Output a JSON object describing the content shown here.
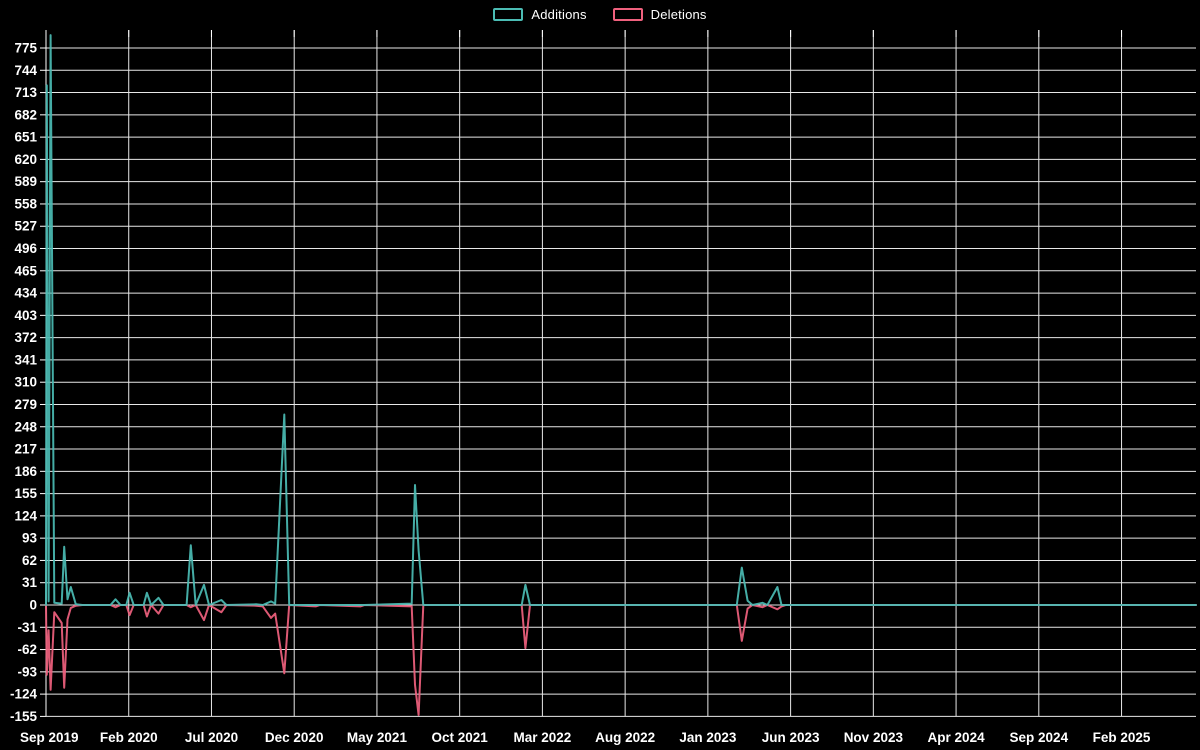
{
  "colors": {
    "background": "#000000",
    "grid": "#e8e8e8",
    "axis": "#ffffff",
    "text": "#ffffff",
    "additions": "#4bbcb4",
    "deletions": "#f0617e"
  },
  "chart_data": {
    "type": "line",
    "title": "",
    "xlabel": "",
    "ylabel": "",
    "legend_position": "top-center",
    "grid": true,
    "y_axis": {
      "min": -155,
      "max": 775,
      "tick_step": 31,
      "ticks": [
        775,
        744,
        713,
        682,
        651,
        620,
        589,
        558,
        527,
        496,
        465,
        434,
        403,
        372,
        341,
        310,
        279,
        248,
        217,
        186,
        155,
        124,
        93,
        62,
        31,
        0,
        -31,
        -62,
        -93,
        -124,
        -155
      ]
    },
    "x_axis": {
      "unit": "months since Sep 2019",
      "range_months": 69.5,
      "tick_months": [
        0,
        5,
        10,
        15,
        20,
        25,
        30,
        35,
        40,
        45,
        50,
        55,
        60,
        65
      ],
      "tick_labels": [
        "Sep 2019",
        "Feb 2020",
        "Jul 2020",
        "Dec 2020",
        "May 2021",
        "Oct 2021",
        "Mar 2022",
        "Aug 2022",
        "Jan 2023",
        "Jun 2023",
        "Nov 2023",
        "Apr 2024",
        "Sep 2024",
        "Feb 2025"
      ]
    },
    "x_months": [
      0.0,
      0.05,
      0.16,
      0.28,
      0.5,
      0.95,
      1.1,
      1.3,
      1.5,
      1.8,
      2.2,
      3.9,
      4.2,
      4.5,
      4.85,
      5.05,
      5.3,
      5.9,
      6.1,
      6.35,
      6.8,
      7.1,
      8.5,
      8.75,
      9.05,
      9.55,
      9.85,
      10.6,
      10.9,
      12.7,
      13.1,
      13.6,
      13.85,
      14.4,
      14.7,
      16.3,
      16.55,
      19.0,
      19.25,
      22.1,
      22.3,
      22.52,
      22.8,
      28.75,
      28.97,
      29.25,
      41.75,
      42.05,
      42.4,
      42.7,
      43.3,
      43.6,
      44.2,
      44.45,
      44.7,
      69.5
    ],
    "series": [
      {
        "name": "Additions",
        "color": "#4bbcb4",
        "values": [
          0,
          723,
          5,
          793,
          3,
          2,
          81,
          8,
          25,
          1,
          0,
          0,
          8,
          0,
          0,
          17,
          0,
          0,
          17,
          0,
          10,
          0,
          0,
          83,
          0,
          28,
          0,
          7,
          0,
          1,
          0,
          5,
          2,
          265,
          0,
          0,
          0,
          0,
          0,
          2,
          167,
          76,
          0,
          0,
          28,
          0,
          0,
          52,
          6,
          0,
          3,
          0,
          25,
          0,
          0,
          0
        ]
      },
      {
        "name": "Deletions",
        "color": "#f0617e",
        "values": [
          0,
          -97,
          -35,
          -118,
          -10,
          -25,
          -115,
          -20,
          -4,
          -1,
          0,
          0,
          -3,
          0,
          0,
          -14,
          0,
          0,
          -16,
          0,
          -12,
          0,
          0,
          -3,
          0,
          -21,
          0,
          -10,
          0,
          -1,
          -2,
          -18,
          -12,
          -95,
          0,
          -2,
          0,
          -2,
          0,
          -2,
          -111,
          -153,
          0,
          0,
          -60,
          0,
          0,
          -50,
          -5,
          0,
          -3,
          0,
          -6,
          -2,
          0,
          0
        ]
      }
    ]
  }
}
